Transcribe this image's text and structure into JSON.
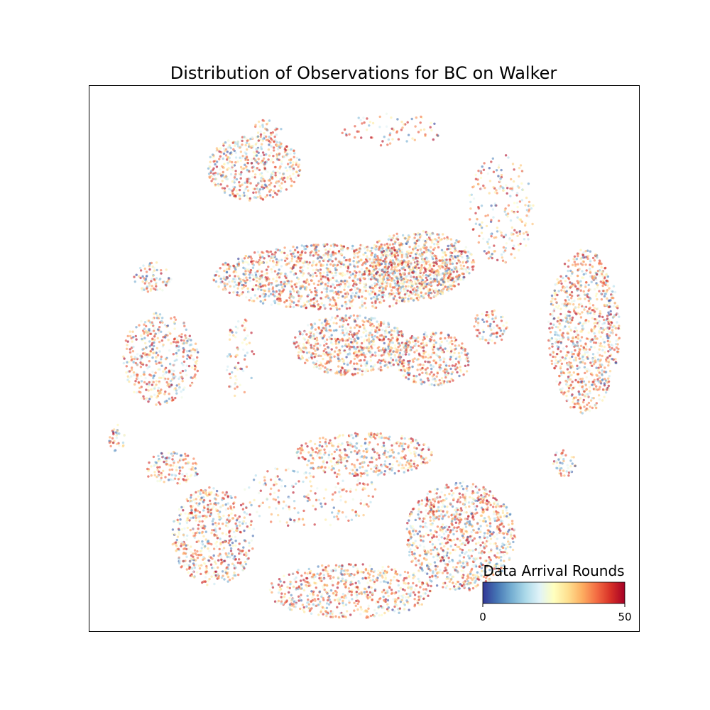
{
  "chart_data": {
    "type": "scatter",
    "title": "Distribution of Observations for BC on Walker",
    "xlabel": "",
    "ylabel": "",
    "axes_ticks": false,
    "colorbar": {
      "label": "Data Arrival Rounds",
      "min": 0,
      "max": 50,
      "tick_labels": [
        "0",
        "50"
      ],
      "colormap": "RdYlBu_r",
      "stops": [
        "#313695",
        "#4575b4",
        "#74add1",
        "#abd9e9",
        "#e0f3f8",
        "#ffffbf",
        "#fee090",
        "#fdae61",
        "#f46d43",
        "#d73027",
        "#a50026"
      ],
      "placement": "lower-right"
    },
    "x_range": [
      -100,
      100
    ],
    "y_range": [
      -100,
      100
    ],
    "point_alpha": 0.6,
    "clusters": [
      {
        "name": "top-left-blob",
        "center": [
          -40,
          70
        ],
        "spread": [
          17,
          12
        ],
        "density": 0.8
      },
      {
        "name": "top-left-small",
        "center": [
          -35,
          84
        ],
        "spread": [
          5,
          4
        ],
        "density": 0.6
      },
      {
        "name": "top-sparse-dots",
        "center": [
          10,
          84
        ],
        "spread": [
          20,
          6
        ],
        "density": 0.2
      },
      {
        "name": "upper-right-loose",
        "center": [
          50,
          55
        ],
        "spread": [
          12,
          20
        ],
        "density": 0.3
      },
      {
        "name": "far-left-small",
        "center": [
          -77,
          30
        ],
        "spread": [
          7,
          6
        ],
        "density": 0.6
      },
      {
        "name": "left-band",
        "center": [
          -74,
          0
        ],
        "spread": [
          14,
          17
        ],
        "density": 0.6
      },
      {
        "name": "left-tiny",
        "center": [
          -90,
          -29
        ],
        "spread": [
          3,
          5
        ],
        "density": 0.7
      },
      {
        "name": "left-lower-small",
        "center": [
          -70,
          -40
        ],
        "spread": [
          10,
          6
        ],
        "density": 0.7
      },
      {
        "name": "upper-long-band",
        "center": [
          -10,
          30
        ],
        "spread": [
          45,
          12
        ],
        "density": 0.9
      },
      {
        "name": "upper-band-right-dense",
        "center": [
          20,
          35
        ],
        "spread": [
          20,
          12
        ],
        "density": 0.9
      },
      {
        "name": "center-dense",
        "center": [
          -5,
          5
        ],
        "spread": [
          21,
          11
        ],
        "density": 1.0
      },
      {
        "name": "center-right",
        "center": [
          25,
          0
        ],
        "spread": [
          14,
          10
        ],
        "density": 0.8
      },
      {
        "name": "mid-right-small",
        "center": [
          46,
          12
        ],
        "spread": [
          6,
          7
        ],
        "density": 0.6
      },
      {
        "name": "right-oval",
        "center": [
          80,
          10
        ],
        "spread": [
          13,
          30
        ],
        "density": 0.8
      },
      {
        "name": "right-lower-tiny",
        "center": [
          73,
          -38
        ],
        "spread": [
          5,
          5
        ],
        "density": 0.6
      },
      {
        "name": "center-lower-band",
        "center": [
          0,
          -35
        ],
        "spread": [
          25,
          8
        ],
        "density": 0.7
      },
      {
        "name": "lower-left",
        "center": [
          -55,
          -65
        ],
        "spread": [
          15,
          18
        ],
        "density": 0.7
      },
      {
        "name": "lower-right",
        "center": [
          35,
          -65
        ],
        "spread": [
          20,
          20
        ],
        "density": 0.8
      },
      {
        "name": "bottom-arc",
        "center": [
          -5,
          -85
        ],
        "spread": [
          30,
          10
        ],
        "density": 0.7
      },
      {
        "name": "middle-scatter",
        "center": [
          -20,
          -50
        ],
        "spread": [
          25,
          12
        ],
        "density": 0.2
      },
      {
        "name": "left-vertical-scatter",
        "center": [
          -45,
          0
        ],
        "spread": [
          6,
          15
        ],
        "density": 0.25
      }
    ]
  }
}
